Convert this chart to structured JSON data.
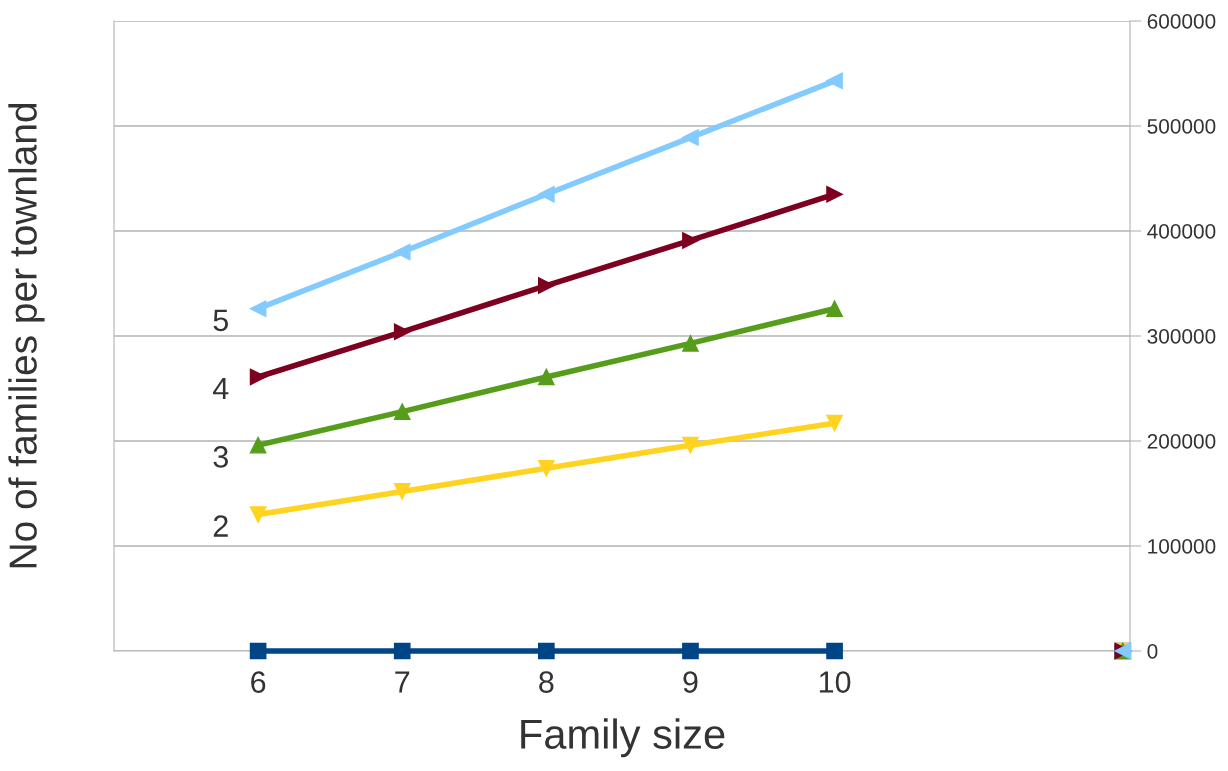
{
  "chart_data": {
    "type": "line",
    "xlabel": "Family size",
    "ylabel": "No of families per townland",
    "categories": [
      "6",
      "7",
      "8",
      "9",
      "10",
      null,
      null
    ],
    "ylim": [
      0,
      600000
    ],
    "yticks": [
      0,
      100000,
      200000,
      300000,
      400000,
      500000,
      600000
    ],
    "grid": "y",
    "legend": false,
    "series": [
      {
        "color": "#004586",
        "marker": "square",
        "values": [
          0,
          0,
          0,
          0,
          0,
          null,
          0
        ]
      },
      {
        "name": "2",
        "color": "#ffd320",
        "marker": "triangle-down",
        "values": [
          130000,
          152000,
          174000,
          196000,
          217000,
          null,
          0
        ]
      },
      {
        "name": "3",
        "color": "#579d1c",
        "marker": "triangle",
        "values": [
          196000,
          228000,
          261000,
          293000,
          326000,
          null,
          0
        ]
      },
      {
        "name": "4",
        "color": "#7e0021",
        "marker": "triangle-right",
        "values": [
          261000,
          304000,
          348000,
          391000,
          435000,
          null,
          0
        ]
      },
      {
        "name": "5",
        "color": "#83caff",
        "marker": "triangle-left",
        "values": [
          326000,
          380000,
          435000,
          489000,
          543000,
          null,
          0
        ]
      }
    ]
  }
}
